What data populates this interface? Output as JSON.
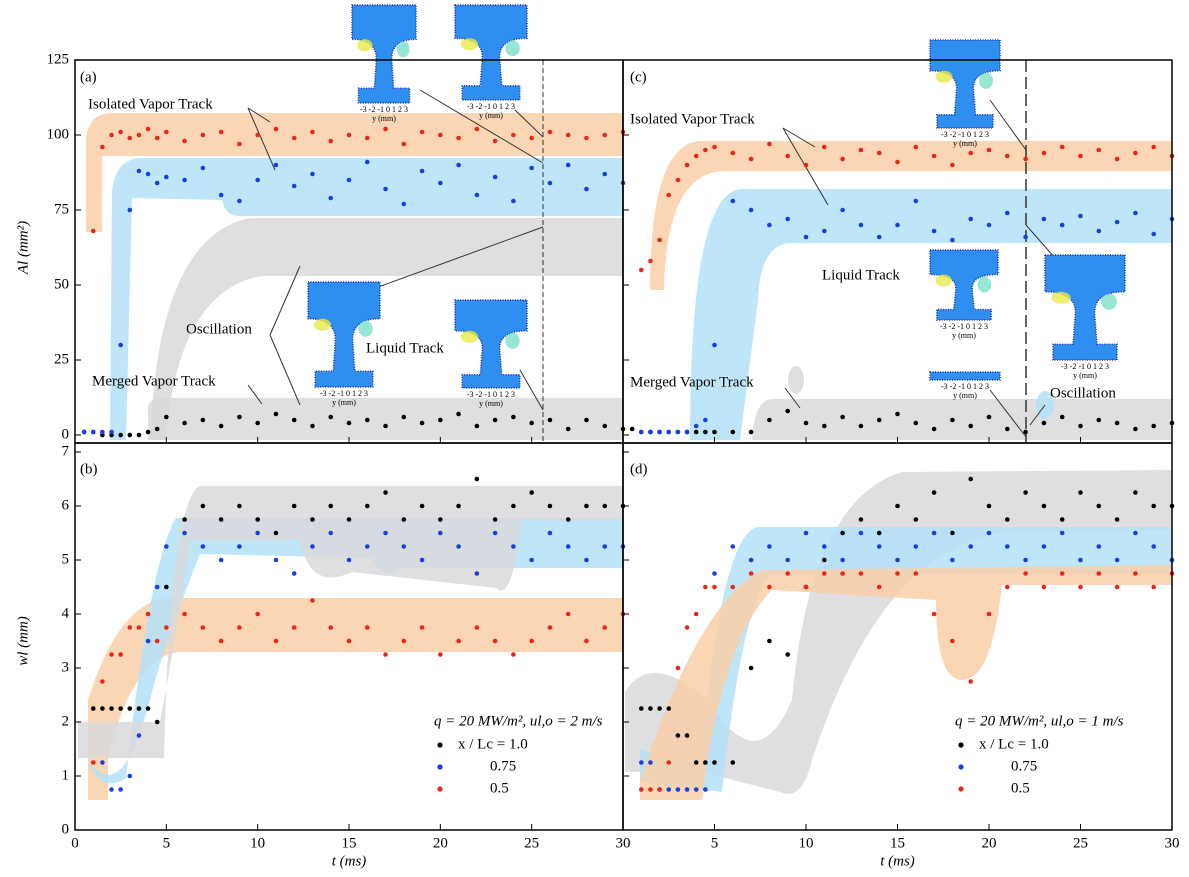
{
  "chart_data": [
    {
      "type": "scatter",
      "panel_label": "(a)",
      "ylabel": "Al (mm²)",
      "x": [
        0.5,
        1,
        1.5,
        2,
        2.5,
        3,
        3.5,
        4,
        4.5,
        5,
        6,
        7,
        8,
        9,
        10,
        11,
        12,
        13,
        14,
        15,
        16,
        17,
        18,
        19,
        20,
        21,
        22,
        23,
        24,
        25,
        26,
        27,
        28,
        29,
        30
      ],
      "series": [
        {
          "color": "#000000",
          "values": [
            1,
            1,
            0,
            0,
            0,
            0,
            0,
            1,
            2,
            6,
            4,
            5,
            3,
            6,
            4,
            7,
            5,
            3,
            6,
            4,
            5,
            3,
            6,
            4,
            5,
            7,
            3,
            5,
            6,
            4,
            5,
            2,
            5,
            3,
            2
          ]
        },
        {
          "color": "#1a3fe0",
          "values": [
            1,
            1,
            1,
            1,
            30,
            75,
            88,
            87,
            84,
            86,
            85,
            89,
            80,
            78,
            85,
            90,
            83,
            87,
            79,
            85,
            91,
            82,
            77,
            88,
            84,
            90,
            80,
            86,
            78,
            89,
            84,
            90,
            82,
            87,
            84
          ]
        },
        {
          "color": "#e8261c",
          "values": [
            null,
            68,
            96,
            100,
            101,
            99,
            100,
            102,
            99,
            101,
            98,
            100,
            101,
            97,
            100,
            102,
            99,
            101,
            98,
            100,
            99,
            102,
            97,
            101,
            100,
            99,
            102,
            98,
            100,
            99,
            101,
            100,
            99,
            100,
            101
          ]
        }
      ],
      "xlim": [
        0,
        30
      ],
      "xticks": [
        0,
        5,
        10,
        15,
        20,
        25,
        30
      ],
      "ylim": [
        0,
        125
      ],
      "yticks": [
        0,
        25,
        50,
        75,
        100,
        125
      ],
      "annotations": [
        "Isolated Vapor Track",
        "Oscillation",
        "Merged Vapor Track",
        "Liquid Track"
      ]
    },
    {
      "type": "scatter",
      "panel_label": "(b)",
      "ylabel": "wl (mm)",
      "xlabel": "t (ms)",
      "legend_title": "q = 20 MW/m², ul,o = 2 m/s",
      "x": [
        0.5,
        1,
        1.5,
        2,
        2.5,
        3,
        3.5,
        4,
        4.5,
        5,
        6,
        7,
        8,
        9,
        10,
        11,
        12,
        13,
        14,
        15,
        16,
        17,
        18,
        19,
        20,
        21,
        22,
        23,
        24,
        25,
        26,
        27,
        28,
        29,
        30
      ],
      "series": [
        {
          "name": "x / Lc = 1.0",
          "color": "#000000",
          "values": [
            null,
            2.25,
            2.25,
            2.25,
            2.25,
            2.25,
            2.25,
            2.25,
            2,
            4.5,
            5.75,
            6,
            5.75,
            6,
            5.75,
            5.5,
            6,
            5.75,
            6,
            5.75,
            6,
            6.25,
            5.75,
            6,
            5.75,
            6,
            6.5,
            5.75,
            6,
            6.25,
            6,
            5.75,
            6,
            6,
            6
          ]
        },
        {
          "name": "0.75",
          "color": "#1a3fe0",
          "values": [
            null,
            null,
            1.25,
            0.75,
            0.75,
            1,
            1.75,
            3.5,
            4.5,
            5.25,
            5.5,
            5.25,
            5,
            5.25,
            5.5,
            5,
            4.75,
            5.25,
            5.5,
            5,
            5.25,
            5.5,
            5.25,
            5,
            5.5,
            5.25,
            4.75,
            5.5,
            5.25,
            5,
            5.5,
            5.25,
            5,
            5.25,
            5.25
          ]
        },
        {
          "name": "0.5",
          "color": "#e8261c",
          "values": [
            null,
            1.25,
            2.75,
            3.25,
            3.25,
            3.75,
            3.75,
            4,
            3.5,
            3.75,
            4,
            3.75,
            3.5,
            3.75,
            4,
            3.5,
            3.75,
            4.25,
            3.75,
            3.5,
            3.75,
            3.25,
            3.5,
            3.75,
            3.25,
            3.5,
            3.75,
            3.5,
            3.25,
            3.5,
            3.75,
            4,
            3.5,
            3.75,
            4
          ]
        }
      ],
      "xlim": [
        0,
        30
      ],
      "xticks": [
        0,
        5,
        10,
        15,
        20,
        25,
        30
      ],
      "ylim": [
        0,
        7
      ],
      "yticks": [
        0,
        1,
        2,
        3,
        4,
        5,
        6,
        7
      ]
    },
    {
      "type": "scatter",
      "panel_label": "(c)",
      "x": [
        0.5,
        1,
        1.5,
        2,
        2.5,
        3,
        3.5,
        4,
        4.5,
        5,
        6,
        7,
        8,
        9,
        10,
        11,
        12,
        13,
        14,
        15,
        16,
        17,
        18,
        19,
        20,
        21,
        22,
        23,
        24,
        25,
        26,
        27,
        28,
        29,
        30
      ],
      "series": [
        {
          "color": "#000000",
          "values": [
            2,
            1,
            1,
            1,
            1,
            1,
            1,
            1,
            1,
            1,
            1,
            1,
            5,
            8,
            4,
            3,
            6,
            3,
            5,
            7,
            4,
            2,
            5,
            3,
            6,
            2,
            1,
            4,
            6,
            3,
            5,
            4,
            2,
            3,
            4
          ]
        },
        {
          "color": "#1a3fe0",
          "values": [
            null,
            1,
            1,
            1,
            1,
            1,
            1,
            3,
            5,
            30,
            78,
            75,
            70,
            72,
            66,
            68,
            75,
            70,
            66,
            70,
            78,
            68,
            65,
            72,
            70,
            74,
            66,
            72,
            70,
            73,
            68,
            71,
            74,
            67,
            72
          ]
        },
        {
          "color": "#e8261c",
          "values": [
            null,
            55,
            58,
            65,
            80,
            85,
            90,
            93,
            95,
            96,
            94,
            92,
            97,
            93,
            90,
            96,
            92,
            95,
            94,
            91,
            96,
            93,
            90,
            94,
            95,
            93,
            92,
            94,
            96,
            93,
            95,
            92,
            94,
            96,
            93
          ]
        }
      ],
      "xlim": [
        0,
        30
      ],
      "xticks": [
        0,
        5,
        10,
        15,
        20,
        25,
        30
      ],
      "ylim": [
        0,
        125
      ],
      "yticks": [
        0,
        25,
        50,
        75,
        100,
        125
      ],
      "annotations": [
        "Isolated Vapor Track",
        "Liquid Track",
        "Merged Vapor Track",
        "Oscillation"
      ]
    },
    {
      "type": "scatter",
      "panel_label": "(d)",
      "xlabel": "t (ms)",
      "legend_title": "q = 20 MW/m², ul,o = 1 m/s",
      "x": [
        0.5,
        1,
        1.5,
        2,
        2.5,
        3,
        3.5,
        4,
        4.5,
        5,
        6,
        7,
        8,
        9,
        10,
        11,
        12,
        13,
        14,
        15,
        16,
        17,
        18,
        19,
        20,
        21,
        22,
        23,
        24,
        25,
        26,
        27,
        28,
        29,
        30
      ],
      "series": [
        {
          "name": "x / Lc = 1.0",
          "color": "#000000",
          "values": [
            null,
            2.25,
            2.25,
            2.25,
            2.25,
            1.75,
            1.75,
            1.25,
            1.25,
            1.25,
            1.25,
            3,
            3.5,
            3.25,
            4.5,
            5,
            5.5,
            5.75,
            5.5,
            6,
            5.75,
            6.25,
            5.5,
            6.5,
            6,
            5.75,
            6.25,
            6,
            5.75,
            6.25,
            6,
            5.75,
            6.25,
            6,
            6
          ]
        },
        {
          "name": "0.75",
          "color": "#1a3fe0",
          "values": [
            null,
            1.25,
            1.25,
            0.75,
            0.75,
            0.75,
            0.75,
            0.75,
            0.75,
            4.75,
            5.25,
            5,
            5.25,
            5,
            5.5,
            5.25,
            5,
            5.5,
            5.25,
            5,
            5.25,
            5.5,
            5,
            5.25,
            5.5,
            5.25,
            5,
            5.25,
            5.5,
            5,
            5.25,
            5,
            5.5,
            5.25,
            5
          ]
        },
        {
          "name": "0.5",
          "color": "#e8261c",
          "values": [
            null,
            0.75,
            0.75,
            0.75,
            1.25,
            3,
            3.75,
            4,
            4.5,
            4.5,
            4.5,
            4.75,
            4.5,
            4.75,
            4.5,
            4.75,
            4.75,
            4.75,
            4.5,
            4.75,
            4.75,
            4,
            3.5,
            2.75,
            4,
            4.5,
            4.75,
            4.5,
            4.75,
            4.5,
            4.75,
            4.5,
            4.75,
            4.5,
            4.75
          ]
        }
      ],
      "xlim": [
        0,
        30
      ],
      "xticks": [
        0,
        5,
        10,
        15,
        20,
        25,
        30
      ],
      "ylim": [
        0,
        7
      ],
      "yticks": [
        0,
        1,
        2,
        3,
        4,
        5,
        6,
        7
      ]
    }
  ],
  "insets": {
    "ticks": "-3 -2 -1 0 1 2 3",
    "label": "y (mm)"
  }
}
